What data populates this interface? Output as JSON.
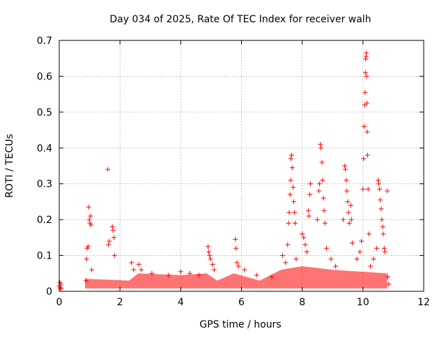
{
  "chart_data": {
    "type": "scatter",
    "title": "Day 034 of 2025, Rate Of TEC Index for receiver walh",
    "xlabel": "GPS time / hours",
    "ylabel": "ROTI / TECUs",
    "xlim": [
      0,
      12
    ],
    "ylim": [
      0,
      0.7
    ],
    "xticks": [
      0,
      2,
      4,
      6,
      8,
      10,
      12
    ],
    "yticks": [
      0,
      0.1,
      0.2,
      0.3,
      0.4,
      0.5,
      0.6,
      0.7
    ],
    "grid": true,
    "marker": "+",
    "marker_color": "#ff0000",
    "series": [
      {
        "name": "ROTI",
        "points": [
          [
            0.0,
            0.015
          ],
          [
            0.02,
            0.025
          ],
          [
            0.03,
            0.01
          ],
          [
            0.05,
            0.02
          ],
          [
            0.06,
            0.008
          ],
          [
            0.88,
            0.03
          ],
          [
            0.9,
            0.09
          ],
          [
            0.92,
            0.12
          ],
          [
            0.95,
            0.125
          ],
          [
            0.97,
            0.235
          ],
          [
            0.99,
            0.2
          ],
          [
            1.01,
            0.19
          ],
          [
            1.03,
            0.21
          ],
          [
            1.05,
            0.185
          ],
          [
            1.07,
            0.06
          ],
          [
            1.6,
            0.34
          ],
          [
            1.62,
            0.13
          ],
          [
            1.65,
            0.14
          ],
          [
            1.75,
            0.18
          ],
          [
            1.77,
            0.17
          ],
          [
            1.8,
            0.15
          ],
          [
            1.82,
            0.1
          ],
          [
            2.38,
            0.08
          ],
          [
            2.45,
            0.06
          ],
          [
            2.62,
            0.075
          ],
          [
            2.7,
            0.06
          ],
          [
            3.05,
            0.05
          ],
          [
            3.6,
            0.045
          ],
          [
            4.0,
            0.055
          ],
          [
            4.3,
            0.05
          ],
          [
            4.6,
            0.045
          ],
          [
            4.9,
            0.125
          ],
          [
            4.92,
            0.11
          ],
          [
            4.95,
            0.1
          ],
          [
            4.98,
            0.09
          ],
          [
            5.05,
            0.075
          ],
          [
            5.1,
            0.06
          ],
          [
            5.8,
            0.145
          ],
          [
            5.82,
            0.12
          ],
          [
            5.85,
            0.08
          ],
          [
            5.9,
            0.07
          ],
          [
            6.1,
            0.06
          ],
          [
            6.5,
            0.045
          ],
          [
            7.0,
            0.04
          ],
          [
            7.35,
            0.1
          ],
          [
            7.45,
            0.08
          ],
          [
            7.52,
            0.13
          ],
          [
            7.55,
            0.19
          ],
          [
            7.57,
            0.22
          ],
          [
            7.6,
            0.27
          ],
          [
            7.62,
            0.31
          ],
          [
            7.63,
            0.37
          ],
          [
            7.65,
            0.38
          ],
          [
            7.67,
            0.345
          ],
          [
            7.7,
            0.29
          ],
          [
            7.72,
            0.25
          ],
          [
            7.75,
            0.22
          ],
          [
            7.77,
            0.19
          ],
          [
            7.8,
            0.09
          ],
          [
            8.0,
            0.16
          ],
          [
            8.05,
            0.15
          ],
          [
            8.1,
            0.13
          ],
          [
            8.15,
            0.11
          ],
          [
            8.2,
            0.225
          ],
          [
            8.22,
            0.21
          ],
          [
            8.25,
            0.27
          ],
          [
            8.27,
            0.3
          ],
          [
            8.5,
            0.2
          ],
          [
            8.55,
            0.28
          ],
          [
            8.57,
            0.3
          ],
          [
            8.6,
            0.41
          ],
          [
            8.62,
            0.4
          ],
          [
            8.65,
            0.36
          ],
          [
            8.67,
            0.31
          ],
          [
            8.7,
            0.26
          ],
          [
            8.72,
            0.225
          ],
          [
            8.75,
            0.19
          ],
          [
            8.8,
            0.12
          ],
          [
            8.95,
            0.09
          ],
          [
            9.1,
            0.07
          ],
          [
            9.35,
            0.2
          ],
          [
            9.4,
            0.35
          ],
          [
            9.42,
            0.34
          ],
          [
            9.45,
            0.31
          ],
          [
            9.47,
            0.28
          ],
          [
            9.5,
            0.25
          ],
          [
            9.52,
            0.22
          ],
          [
            9.55,
            0.19
          ],
          [
            9.6,
            0.24
          ],
          [
            9.62,
            0.2
          ],
          [
            9.65,
            0.135
          ],
          [
            9.8,
            0.09
          ],
          [
            9.9,
            0.11
          ],
          [
            9.95,
            0.14
          ],
          [
            10.0,
            0.285
          ],
          [
            10.02,
            0.37
          ],
          [
            10.04,
            0.46
          ],
          [
            10.06,
            0.52
          ],
          [
            10.07,
            0.555
          ],
          [
            10.08,
            0.61
          ],
          [
            10.09,
            0.648
          ],
          [
            10.1,
            0.655
          ],
          [
            10.11,
            0.665
          ],
          [
            10.12,
            0.6
          ],
          [
            10.13,
            0.525
          ],
          [
            10.14,
            0.445
          ],
          [
            10.15,
            0.38
          ],
          [
            10.17,
            0.285
          ],
          [
            10.2,
            0.16
          ],
          [
            10.25,
            0.07
          ],
          [
            10.35,
            0.09
          ],
          [
            10.45,
            0.12
          ],
          [
            10.5,
            0.31
          ],
          [
            10.52,
            0.3
          ],
          [
            10.55,
            0.285
          ],
          [
            10.57,
            0.255
          ],
          [
            10.6,
            0.23
          ],
          [
            10.62,
            0.2
          ],
          [
            10.65,
            0.18
          ],
          [
            10.67,
            0.16
          ],
          [
            10.7,
            0.12
          ],
          [
            10.72,
            0.11
          ],
          [
            10.8,
            0.28
          ],
          [
            10.82,
            0.04
          ],
          [
            10.85,
            0.02
          ]
        ]
      }
    ]
  }
}
